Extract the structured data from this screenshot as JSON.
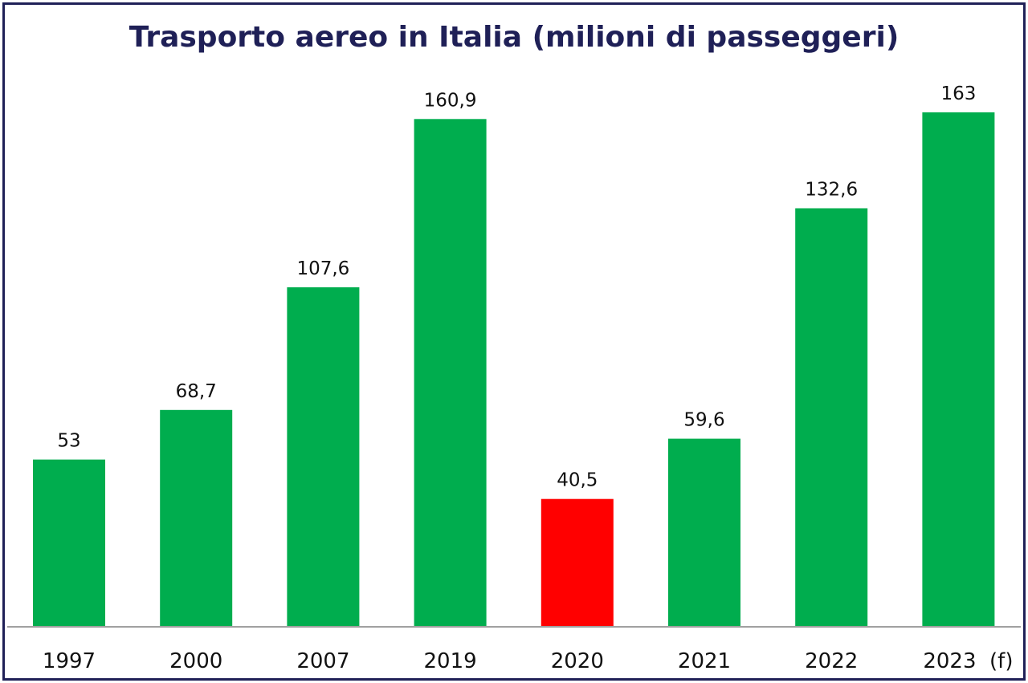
{
  "chart_data": {
    "type": "bar",
    "title": "Trasporto aereo in Italia (milioni di passeggeri)",
    "xlabel": "",
    "ylabel": "",
    "categories": [
      "1997",
      "2000",
      "2007",
      "2019",
      "2020",
      "2021",
      "2022",
      "2023 (f)"
    ],
    "values": [
      53,
      68.7,
      107.6,
      160.9,
      40.5,
      59.6,
      132.6,
      163
    ],
    "data_labels": [
      "53",
      "68,7",
      "107,6",
      "160,9",
      "40,5",
      "59,6",
      "132,6",
      "163"
    ],
    "bar_colors": [
      "#00ad4e",
      "#00ad4e",
      "#00ad4e",
      "#00ad4e",
      "#ff0000",
      "#00ad4e",
      "#00ad4e",
      "#00ad4e"
    ],
    "highlight": {
      "category": "2020",
      "color": "#ff0000"
    },
    "ylim": [
      0,
      163
    ],
    "grid": false,
    "legend": "none",
    "colors": {
      "bar": "#00ad4e",
      "highlight": "#ff0000",
      "title": "#1f2057",
      "border": "#1f2057",
      "axis": "#a0a0a0"
    }
  }
}
